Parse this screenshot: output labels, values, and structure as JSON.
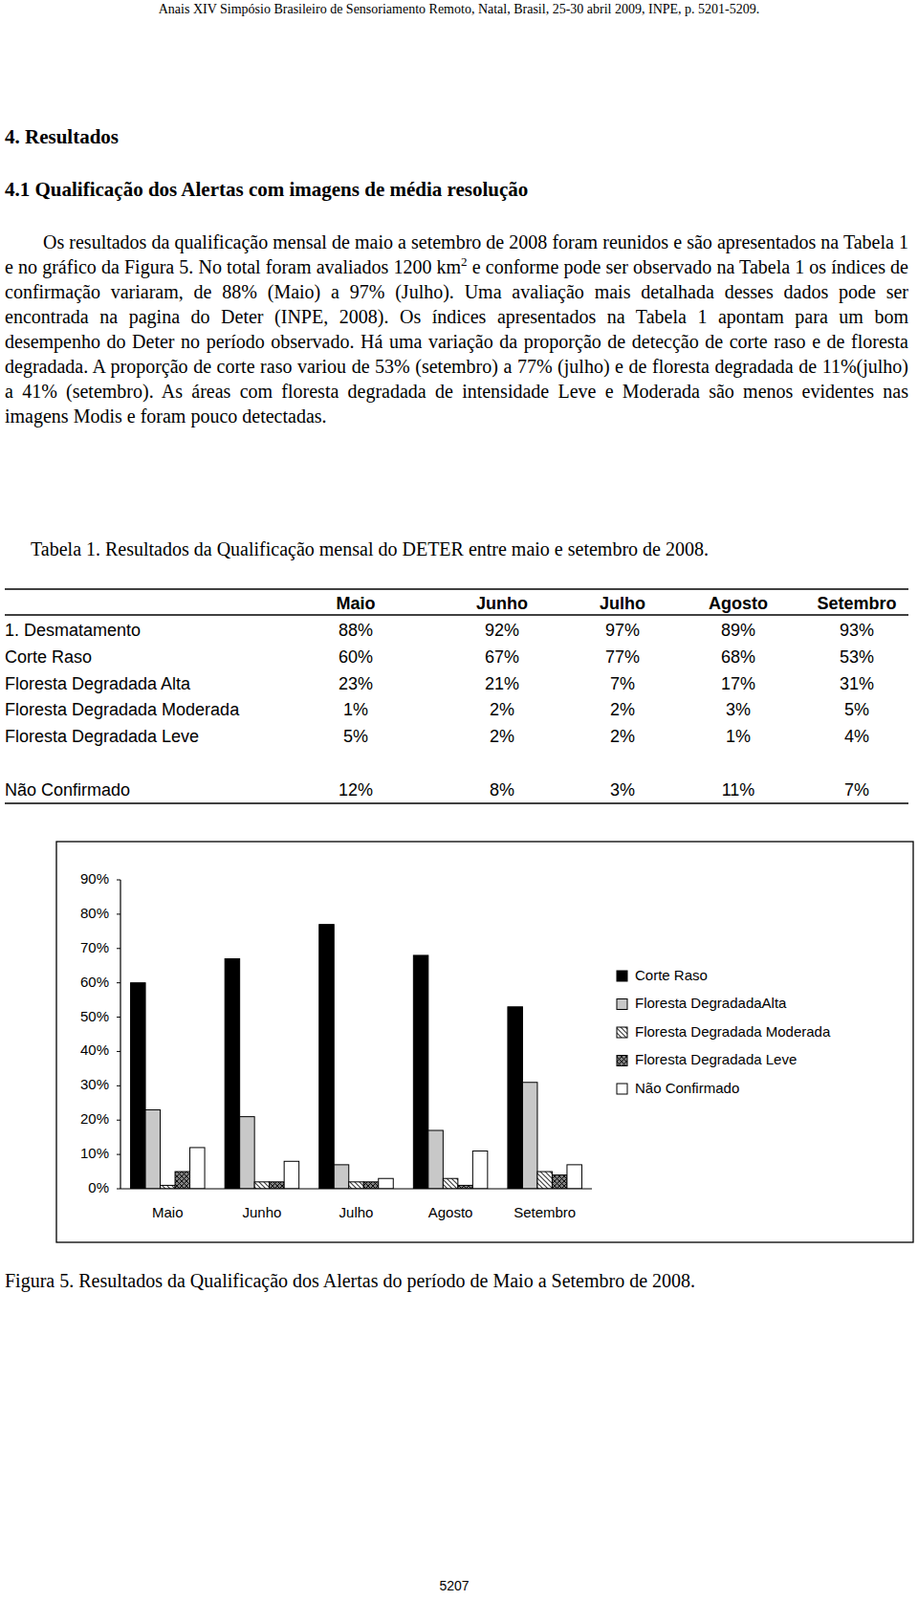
{
  "header": "Anais XIV Simpósio Brasileiro de Sensoriamento Remoto, Natal, Brasil, 25-30 abril 2009, INPE, p. 5201-5209.",
  "section_title": "4. Resultados",
  "subsection_title": "4.1 Qualificação dos Alertas com imagens de média resolução",
  "paragraph": [
    "Os resultados da qualificação mensal de maio a setembro de 2008 foram reunidos e são apresentados na Tabela 1 e no gráfico da Figura 5. No total foram avaliados 1200 km",
    "2",
    " e conforme pode ser observado na Tabela 1 os índices de confirmação variaram, de 88% (Maio) a 97% (Julho). Uma avaliação mais detalhada desses dados pode ser encontrada na pagina do Deter (INPE, 2008). Os índices apresentados na Tabela 1 apontam para um bom desempenho do Deter no período observado. Há uma variação da proporção de detecção de corte raso e de floresta degradada. A proporção de corte raso variou de 53% (setembro) a 77% (julho) e de floresta degradada de 11%(julho) a 41% (setembro). As áreas com floresta degradada de intensidade Leve e Moderada são menos evidentes nas imagens Modis e foram pouco detectadas."
  ],
  "table_caption": "Tabela 1. Resultados da Qualificação mensal do DETER entre maio e setembro de 2008.",
  "table": {
    "header": [
      "Maio",
      "Junho",
      "Julho",
      "Agosto",
      "Setembro"
    ],
    "rows": [
      [
        "1. Desmatamento",
        "88%",
        "92%",
        "97%",
        "89%",
        "93%"
      ],
      [
        "Corte Raso",
        "60%",
        "67%",
        "77%",
        "68%",
        "53%"
      ],
      [
        "Floresta Degradada Alta",
        "23%",
        "21%",
        "7%",
        "17%",
        "31%"
      ],
      [
        "Floresta Degradada Moderada",
        "1%",
        "2%",
        "2%",
        "3%",
        "5%"
      ],
      [
        "Floresta Degradada Leve",
        "5%",
        "2%",
        "2%",
        "1%",
        "4%"
      ],
      [
        "Não Confirmado",
        "12%",
        "8%",
        "3%",
        "11%",
        "7%"
      ]
    ]
  },
  "chart_data": {
    "type": "bar",
    "categories": [
      "Maio",
      "Junho",
      "Julho",
      "Agosto",
      "Setembro"
    ],
    "series": [
      {
        "name": "Corte Raso",
        "color": "#000000",
        "values": [
          60,
          67,
          77,
          68,
          53
        ]
      },
      {
        "name": "Floresta DegradadaAlta",
        "color": "#c8c8c8",
        "values": [
          23,
          21,
          7,
          17,
          31
        ]
      },
      {
        "name": "Floresta Degradada Moderada",
        "color": "#404040",
        "values": [
          1,
          2,
          2,
          3,
          5
        ]
      },
      {
        "name": "Floresta Degradada Leve",
        "color": "#808080",
        "values": [
          5,
          2,
          2,
          1,
          4
        ]
      },
      {
        "name": "Não Confirmado",
        "color": "#ffffff",
        "values": [
          12,
          8,
          3,
          11,
          7
        ]
      }
    ],
    "ylim": [
      0,
      90
    ],
    "yticks": [
      {
        "value": 0,
        "label": "0%"
      },
      {
        "value": 10,
        "label": "10%"
      },
      {
        "value": 20,
        "label": "20%"
      },
      {
        "value": 30,
        "label": "30%"
      },
      {
        "value": 40,
        "label": "40%"
      },
      {
        "value": 50,
        "label": "50%"
      },
      {
        "value": 60,
        "label": "60%"
      },
      {
        "value": 70,
        "label": "70%"
      },
      {
        "value": 80,
        "label": "80%"
      },
      {
        "value": 90,
        "label": "90%"
      }
    ],
    "grid": false,
    "legend": "right"
  },
  "figure_caption": "Figura 5. Resultados da Qualificação dos Alertas do período de Maio a Setembro de 2008.",
  "page_number": "5207"
}
